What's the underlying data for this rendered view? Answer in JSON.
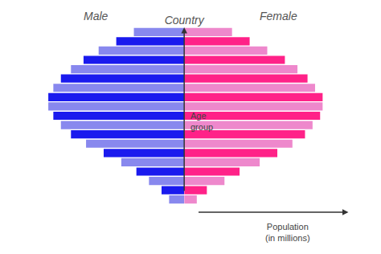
{
  "chart_data": {
    "type": "bar",
    "orientation": "horizontal",
    "title": "Country",
    "xlabel": "Population\n(in millions)",
    "ylabel": "Age\ngroup",
    "categories": [
      null,
      null,
      null,
      null,
      null,
      null,
      null,
      null,
      null,
      null,
      null,
      null,
      null,
      null,
      null,
      null,
      null,
      null,
      null
    ],
    "series": [
      {
        "name": "Male",
        "values": [
          0.6,
          0.9,
          1.4,
          1.9,
          2.5,
          3.2,
          3.9,
          4.5,
          4.9,
          5.2,
          5.4,
          5.4,
          5.2,
          4.9,
          4.5,
          4.0,
          3.4,
          2.7,
          2.0
        ],
        "colors": [
          "#8888ee",
          "#1a1aee",
          "#8888ee",
          "#1a1aee",
          "#8888ee",
          "#1a1aee",
          "#8888ee",
          "#1a1aee",
          "#8888ee",
          "#1a1aee",
          "#8888ee",
          "#1a1aee",
          "#8888ee",
          "#1a1aee",
          "#8888ee",
          "#1a1aee",
          "#8888ee",
          "#1a1aee",
          "#8888ee"
        ]
      },
      {
        "name": "Female",
        "values": [
          0.5,
          0.9,
          1.6,
          2.2,
          3.0,
          3.7,
          4.3,
          4.8,
          5.1,
          5.4,
          5.5,
          5.5,
          5.2,
          4.9,
          4.5,
          4.0,
          3.3,
          2.6,
          1.9
        ],
        "colors": [
          "#ee88cc",
          "#ff2288",
          "#ee88cc",
          "#ff2288",
          "#ee88cc",
          "#ff2288",
          "#ee88cc",
          "#ff2288",
          "#ee88cc",
          "#ff2288",
          "#ee88cc",
          "#ff2288",
          "#ee88cc",
          "#ff2288",
          "#ee88cc",
          "#ff2288",
          "#ee88cc",
          "#ff2288",
          "#ee88cc"
        ]
      }
    ],
    "xlim": [
      -7,
      7.5
    ],
    "grid": false,
    "tick_labels": false
  }
}
